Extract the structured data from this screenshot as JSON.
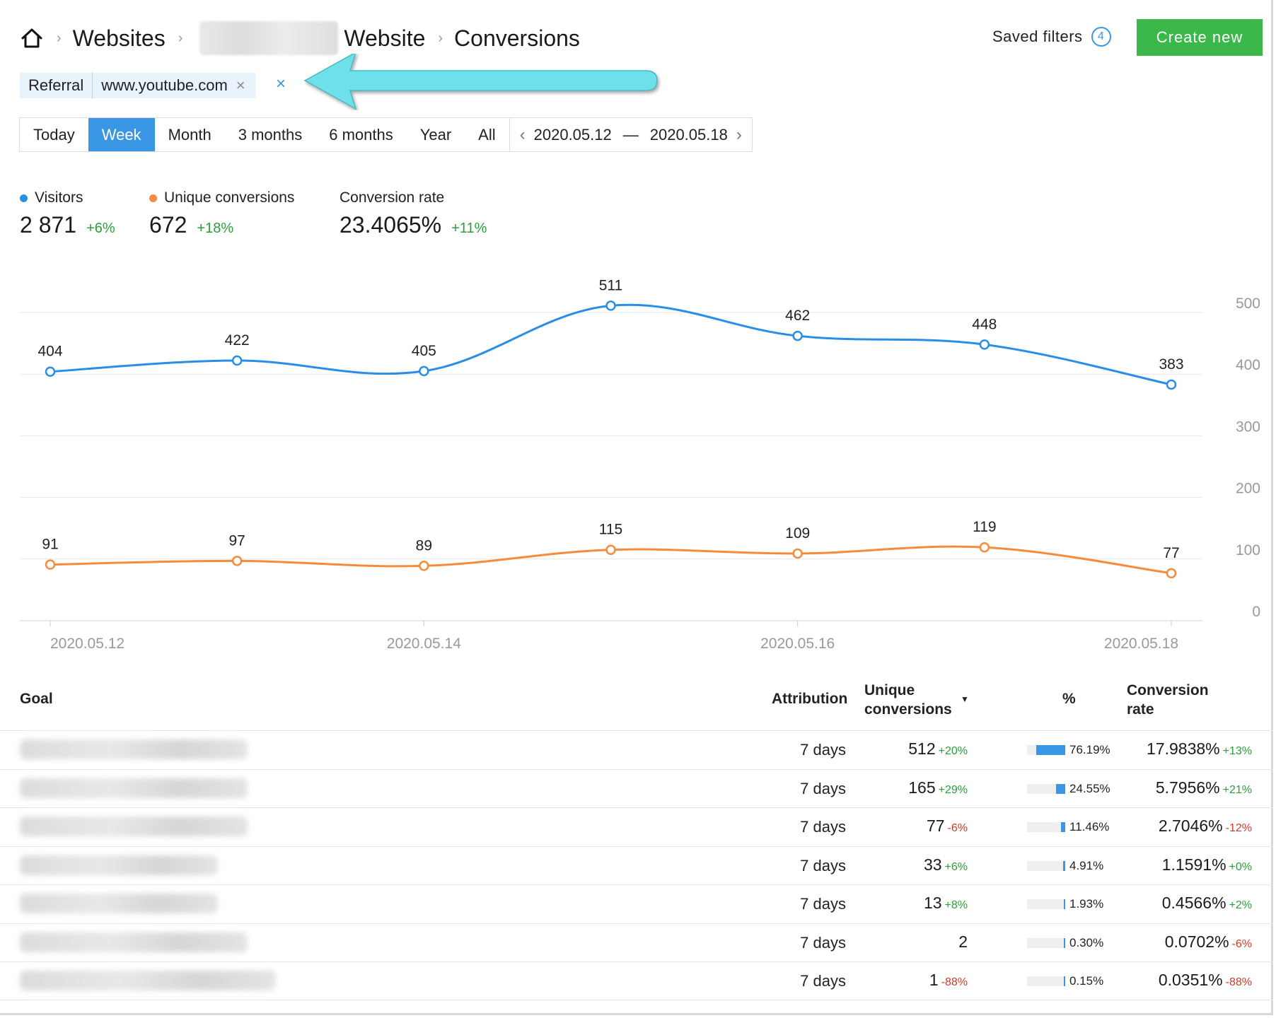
{
  "breadcrumb": {
    "items": [
      "Websites",
      "Website",
      "Conversions"
    ]
  },
  "header": {
    "saved_filters_label": "Saved filters",
    "saved_filters_count": "4",
    "create_button": "Create new"
  },
  "filter": {
    "key": "Referral",
    "value": "www.youtube.com",
    "remove": "×",
    "clear": "×"
  },
  "periods": {
    "options": [
      "Today",
      "Week",
      "Month",
      "3 months",
      "6 months",
      "Year",
      "All"
    ],
    "active": "Week",
    "date_from": "2020.05.12",
    "date_to": "2020.05.18",
    "dash": "—",
    "prev": "‹",
    "next": "›"
  },
  "stats": {
    "visitors": {
      "label": "Visitors",
      "value": "2 871",
      "change": "+6%",
      "color": "#2a8ee6"
    },
    "unique": {
      "label": "Unique conversions",
      "value": "672",
      "change": "+18%",
      "color": "#f58c3c"
    },
    "rate": {
      "label": "Conversion rate",
      "value": "23.4065%",
      "change": "+11%"
    }
  },
  "chart_data": {
    "type": "line",
    "x": [
      "2020.05.12",
      "2020.05.13",
      "2020.05.14",
      "2020.05.15",
      "2020.05.16",
      "2020.05.17",
      "2020.05.18"
    ],
    "x_tick_labels": [
      "2020.05.12",
      "2020.05.14",
      "2020.05.16",
      "2020.05.18"
    ],
    "y_ticks": [
      0,
      100,
      200,
      300,
      400,
      500
    ],
    "ylim": [
      0,
      500
    ],
    "grid": true,
    "series": [
      {
        "key": "visitors",
        "values": [
          404,
          422,
          405,
          511,
          462,
          448,
          383
        ],
        "color": "#2a8ee6"
      },
      {
        "key": "unique_conversions",
        "values": [
          91,
          97,
          89,
          115,
          109,
          119,
          77
        ],
        "color": "#f58c3c"
      }
    ]
  },
  "table": {
    "headers": {
      "goal": "Goal",
      "attribution": "Attribution",
      "unique_line1": "Unique",
      "unique_line2": "conversions",
      "sort_caret": "▼",
      "pct": "%",
      "rate_line1": "Conversion",
      "rate_line2": "rate"
    },
    "rows": [
      {
        "attribution": "7 days",
        "unique": "512",
        "unique_change": "+20%",
        "unique_dir": "pos",
        "pct": "76.19%",
        "pct_value": 76.19,
        "rate": "17.9838%",
        "rate_change": "+13%",
        "rate_dir": "pos"
      },
      {
        "attribution": "7 days",
        "unique": "165",
        "unique_change": "+29%",
        "unique_dir": "pos",
        "pct": "24.55%",
        "pct_value": 24.55,
        "rate": "5.7956%",
        "rate_change": "+21%",
        "rate_dir": "pos"
      },
      {
        "attribution": "7 days",
        "unique": "77",
        "unique_change": "-6%",
        "unique_dir": "neg",
        "pct": "11.46%",
        "pct_value": 11.46,
        "rate": "2.7046%",
        "rate_change": "-12%",
        "rate_dir": "neg"
      },
      {
        "attribution": "7 days",
        "unique": "33",
        "unique_change": "+6%",
        "unique_dir": "pos",
        "pct": "4.91%",
        "pct_value": 4.91,
        "rate": "1.1591%",
        "rate_change": "+0%",
        "rate_dir": "pos"
      },
      {
        "attribution": "7 days",
        "unique": "13",
        "unique_change": "+8%",
        "unique_dir": "pos",
        "pct": "1.93%",
        "pct_value": 1.93,
        "rate": "0.4566%",
        "rate_change": "+2%",
        "rate_dir": "pos"
      },
      {
        "attribution": "7 days",
        "unique": "2",
        "unique_change": "",
        "unique_dir": "pos",
        "pct": "0.30%",
        "pct_value": 0.3,
        "rate": "0.0702%",
        "rate_change": "-6%",
        "rate_dir": "neg"
      },
      {
        "attribution": "7 days",
        "unique": "1",
        "unique_change": "-88%",
        "unique_dir": "neg",
        "pct": "0.15%",
        "pct_value": 0.15,
        "rate": "0.0351%",
        "rate_change": "-88%",
        "rate_dir": "neg"
      }
    ]
  }
}
